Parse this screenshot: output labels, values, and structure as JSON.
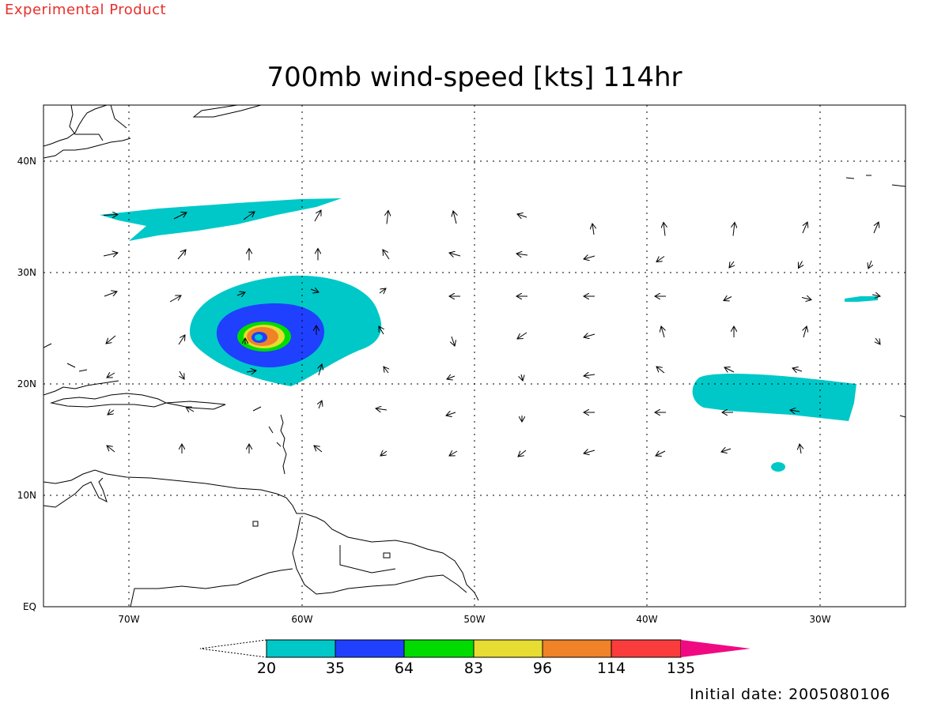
{
  "header": {
    "experimental_label": "Experimental Product",
    "title": "700mb wind-speed [kts] 114hr",
    "initial_date": "Initial date: 2005080106"
  },
  "map": {
    "lon_range": [
      -75,
      -25
    ],
    "lat_range": [
      0,
      45
    ],
    "x_ticks": [
      {
        "lon": -70,
        "label": "70W"
      },
      {
        "lon": -60,
        "label": "60W"
      },
      {
        "lon": -50,
        "label": "50W"
      },
      {
        "lon": -40,
        "label": "40W"
      },
      {
        "lon": -30,
        "label": "30W"
      }
    ],
    "y_ticks": [
      {
        "lat": 0,
        "label": "EQ"
      },
      {
        "lat": 10,
        "label": "10N"
      },
      {
        "lat": 20,
        "label": "20N"
      },
      {
        "lat": 30,
        "label": "30N"
      },
      {
        "lat": 40,
        "label": "40N"
      }
    ],
    "grid": "dotted"
  },
  "colorbar": {
    "levels": [
      "20",
      "35",
      "64",
      "83",
      "96",
      "114",
      "135"
    ],
    "colors": [
      "#00c8c8",
      "#2040ff",
      "#00dc00",
      "#e6dc32",
      "#f08228",
      "#fa3c3c",
      "#f00a82"
    ]
  },
  "wind_field": {
    "speed_regions": [
      {
        "name": "jet-streak",
        "min_kts": 20
      },
      {
        "name": "hurricane-outer",
        "min_kts": 20
      },
      {
        "name": "hurricane-35",
        "min_kts": 35
      },
      {
        "name": "hurricane-64",
        "min_kts": 64
      },
      {
        "name": "hurricane-83",
        "min_kts": 83
      },
      {
        "name": "hurricane-96",
        "min_kts": 96
      },
      {
        "name": "hurricane-114",
        "min_kts": 114
      },
      {
        "name": "east-band",
        "min_kts": 20
      },
      {
        "name": "east-small-a",
        "min_kts": 20
      },
      {
        "name": "east-small-b",
        "min_kts": 20
      }
    ],
    "storm_center": {
      "lon": -62.5,
      "lat": 24
    }
  }
}
